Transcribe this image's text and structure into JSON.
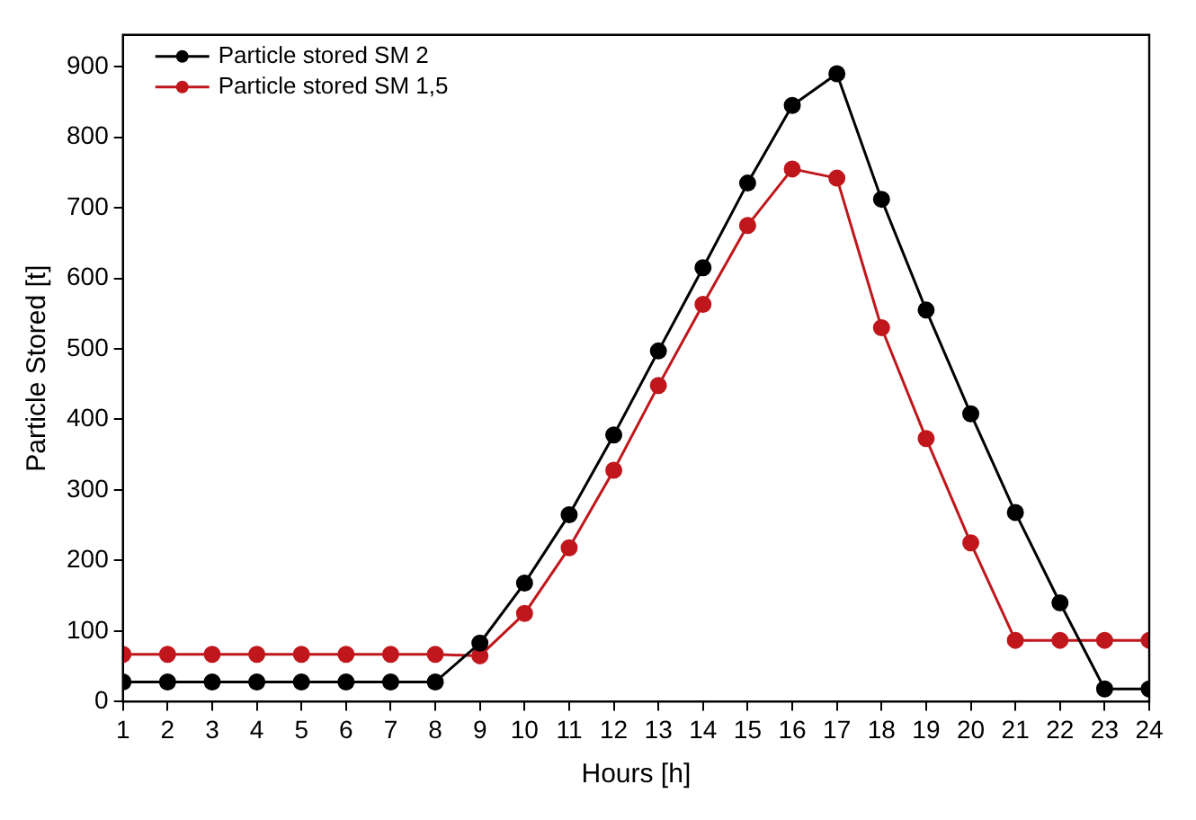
{
  "chart_data": {
    "type": "line",
    "xlabel": "Hours [h]",
    "ylabel": "Particle Stored [t]",
    "x": [
      1,
      2,
      3,
      4,
      5,
      6,
      7,
      8,
      9,
      10,
      11,
      12,
      13,
      14,
      15,
      16,
      17,
      18,
      19,
      20,
      21,
      22,
      23,
      24
    ],
    "series": [
      {
        "name": "Particle stored SM 2",
        "color": "#000000",
        "values": [
          28,
          28,
          28,
          28,
          28,
          28,
          28,
          28,
          83,
          168,
          265,
          378,
          497,
          615,
          735,
          845,
          890,
          712,
          555,
          408,
          268,
          140,
          18,
          18
        ]
      },
      {
        "name": "Particle stored SM 1,5",
        "color": "#c0171c",
        "values": [
          67,
          67,
          67,
          67,
          67,
          67,
          67,
          67,
          65,
          125,
          218,
          328,
          448,
          563,
          675,
          755,
          742,
          530,
          373,
          225,
          87,
          87,
          87,
          87
        ]
      }
    ],
    "xlim": [
      1,
      24
    ],
    "xticks": [
      1,
      2,
      3,
      4,
      5,
      6,
      7,
      8,
      9,
      10,
      11,
      12,
      13,
      14,
      15,
      16,
      17,
      18,
      19,
      20,
      21,
      22,
      23,
      24
    ],
    "ylim": [
      0,
      945
    ],
    "yticks": [
      0,
      100,
      200,
      300,
      400,
      500,
      600,
      700,
      800,
      900
    ],
    "grid": false,
    "legend": "top left",
    "marker": "circle",
    "line_style": "solid"
  }
}
